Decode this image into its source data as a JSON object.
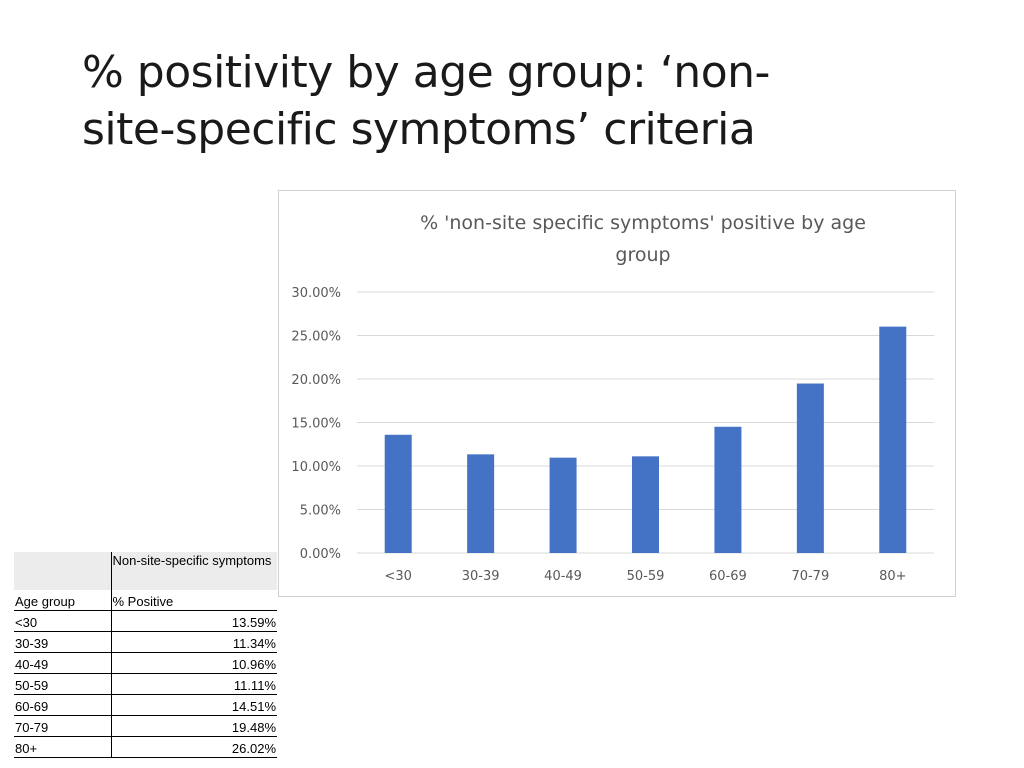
{
  "slide": {
    "title_line1": "% positivity by age group: ‘non-",
    "title_line2": "site-specific symptoms’ criteria"
  },
  "table": {
    "header_col2_line1": "Non-site-specific symptoms",
    "header_col1": "Age group",
    "header_col2_line2": "% Positive",
    "rows": [
      {
        "age": "<30",
        "pct": "13.59%"
      },
      {
        "age": "30-39",
        "pct": "11.34%"
      },
      {
        "age": "40-49",
        "pct": "10.96%"
      },
      {
        "age": "50-59",
        "pct": "11.11%"
      },
      {
        "age": "60-69",
        "pct": "14.51%"
      },
      {
        "age": "70-79",
        "pct": "19.48%"
      },
      {
        "age": "80+",
        "pct": "26.02%"
      }
    ]
  },
  "chart_data": {
    "type": "bar",
    "title_line1": "% 'non-site specific symptoms' positive by age",
    "title_line2": "group",
    "categories": [
      "<30",
      "30-39",
      "40-49",
      "50-59",
      "60-69",
      "70-79",
      "80+"
    ],
    "values": [
      13.59,
      11.34,
      10.96,
      11.11,
      14.51,
      19.48,
      26.02
    ],
    "ylim": [
      0,
      30
    ],
    "yticks": [
      "0.00%",
      "5.00%",
      "10.00%",
      "15.00%",
      "20.00%",
      "25.00%",
      "30.00%"
    ],
    "ytick_values": [
      0,
      5,
      10,
      15,
      20,
      25,
      30
    ],
    "grid": true,
    "bar_color": "#4472c4",
    "grid_color": "#d9d9d9",
    "text_color": "#595959"
  }
}
